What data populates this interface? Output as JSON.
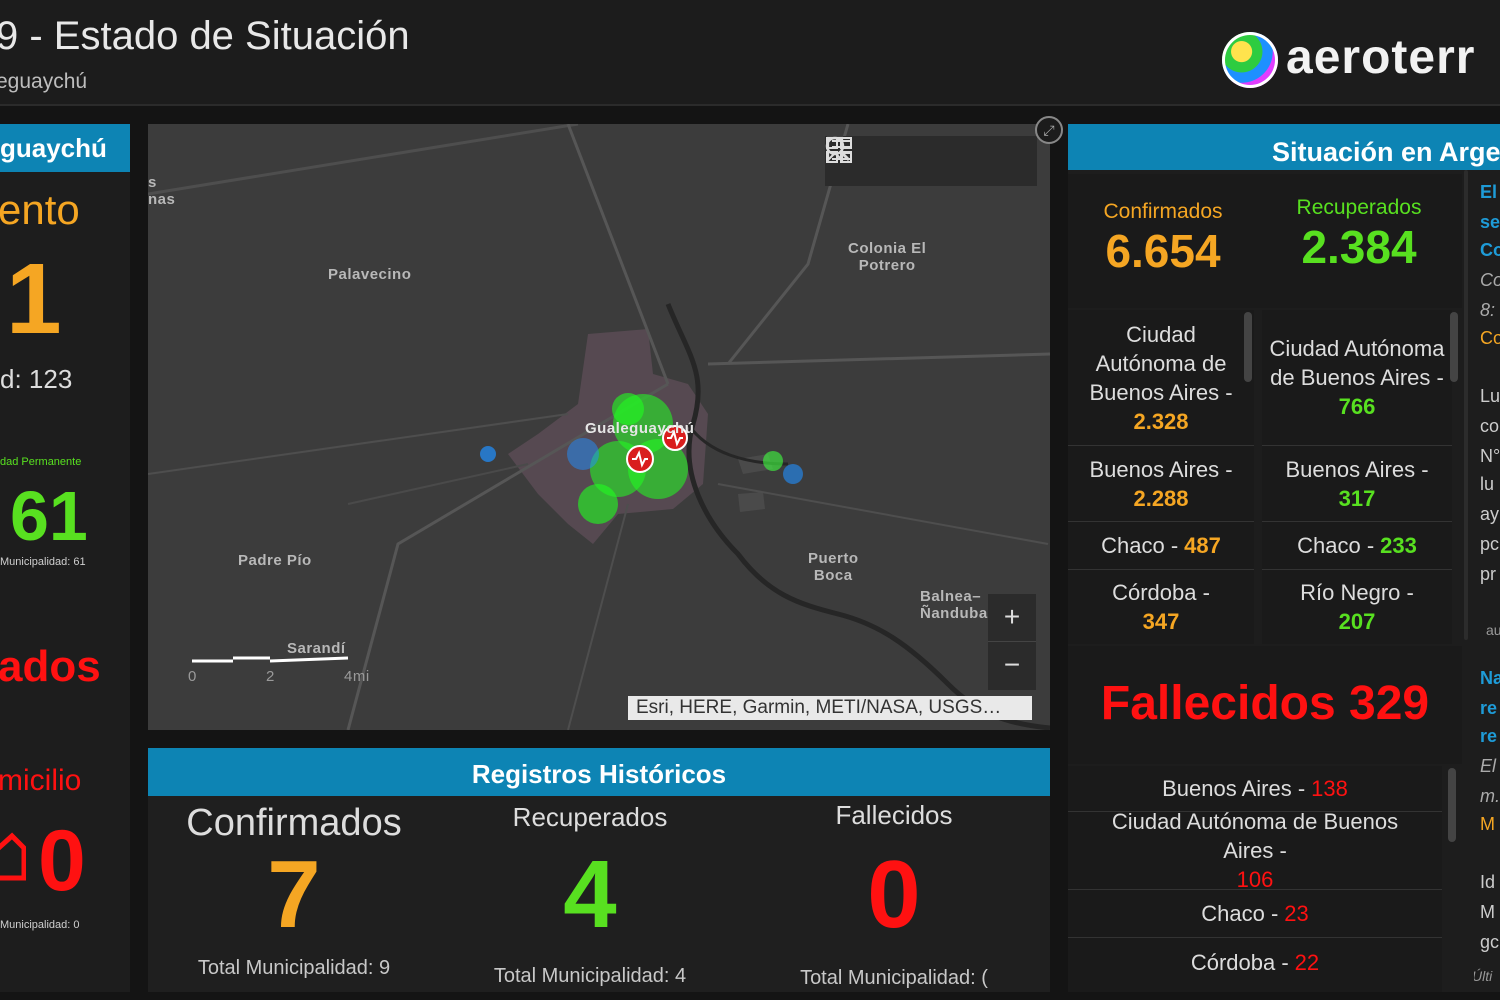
{
  "header": {
    "title": "9 - Estado de Situación",
    "subtitle": "eguaychú",
    "logo_text": "aeroterr"
  },
  "left_panel": {
    "heading": "guaychú",
    "section1_label": "ento",
    "section1_value": "1",
    "section1_total": "d: 123",
    "section2_caption": "dad Permanente",
    "section2_value": "61",
    "section2_total": "Municipalidad: 61",
    "section3_label": "ados",
    "section4_label": "micilio",
    "section4_value": "0",
    "section4_total": "Municipalidad: 0"
  },
  "map": {
    "labels": {
      "partial": "s\nnas",
      "palavecino": "Palavecino",
      "colonia": "Colonia El\nPotrero",
      "gualeguaychu": "Gualeguaychú",
      "padre_pio": "Padre Pío",
      "puerto_boca": "Puerto\nBoca",
      "balneario": "Balnea–\nÑanduba",
      "sarandi": "Sarandí"
    },
    "scale": {
      "zero": "0",
      "two": "2",
      "four": "4mi"
    },
    "attribution": "Esri, HERE, Garmin, METI/NASA, USGS…",
    "zoom_in": "+",
    "zoom_out": "−",
    "tools": [
      "search-icon",
      "bookmark-icon",
      "list-icon",
      "basemap-icon"
    ]
  },
  "historical": {
    "heading": "Registros Históricos",
    "confirmed": {
      "label": "Confirmados",
      "value": "7",
      "total": "Total Municipalidad: 9"
    },
    "recovered": {
      "label": "Recuperados",
      "value": "4",
      "total": "Total Municipalidad: 4"
    },
    "deaths": {
      "label": "Fallecidos",
      "value": "0",
      "total": "Total Municipalidad: ("
    }
  },
  "argentina": {
    "heading": "Situación en Arge",
    "confirmed_label": "Confirmados",
    "confirmed_value": "6.654",
    "recovered_label": "Recuperados",
    "recovered_value": "2.384",
    "confirmed_list": [
      {
        "name": "Ciudad Autónoma de Buenos Aires -",
        "value": "2.328"
      },
      {
        "name": "Buenos Aires -",
        "value": "2.288"
      },
      {
        "name": "Chaco -",
        "value": "487"
      },
      {
        "name": "Córdoba -",
        "value": "347"
      }
    ],
    "recovered_list": [
      {
        "name": "Ciudad Autónoma de Buenos Aires -",
        "value": "766"
      },
      {
        "name": "Buenos Aires -",
        "value": "317"
      },
      {
        "name": "Chaco -",
        "value": "233"
      },
      {
        "name": "Río Negro -",
        "value": "207"
      }
    ],
    "deaths_text": "Fallecidos 329",
    "deaths_list": [
      {
        "name": "Buenos Aires -",
        "value": "138"
      },
      {
        "name": "Ciudad Autónoma de Buenos Aires -",
        "value": "106"
      },
      {
        "name": "Chaco -",
        "value": "23"
      },
      {
        "name": "Córdoba -",
        "value": "22"
      }
    ]
  },
  "news": {
    "lines": [
      "El",
      "se",
      "Co",
      "Co",
      "8:",
      "Co",
      "Lu",
      "co",
      "N°",
      "lu",
      "ay",
      "pc",
      "pr",
      "au",
      "Na",
      "re",
      "re",
      "El",
      "m.",
      "M",
      "Id",
      "M",
      "gc",
      "Últi"
    ]
  },
  "colors": {
    "accent_blue": "#0d84b4",
    "confirmed": "#f5a623",
    "recovered": "#58e020",
    "deaths": "#ff1111"
  }
}
